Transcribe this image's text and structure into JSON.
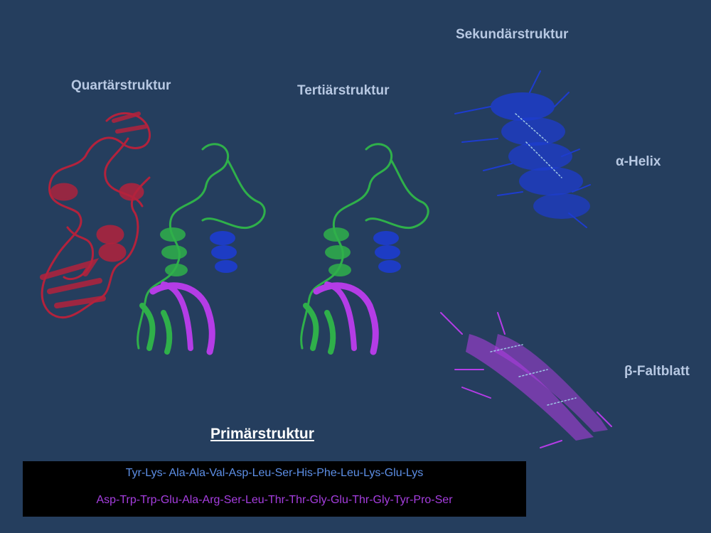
{
  "labels": {
    "quaternary": "Quartärstruktur",
    "tertiary": "Tertiärstruktur",
    "secondary": "Sekundärstruktur",
    "alpha_helix": "α-Helix",
    "beta_sheet": "β-Faltblatt",
    "primary": "Primärstruktur"
  },
  "sequence": {
    "line1": "Tyr-Lys- Ala-Ala-Val-Asp-Leu-Ser-His-Phe-Leu-Lys-Glu-Lys",
    "line2": "Asp-Trp-Trp-Glu-Ala-Arg-Ser-Leu-Thr-Thr-Gly-Glu-Thr-Gly-Tyr-Pro-Ser"
  },
  "colors": {
    "background": "#253e5e",
    "red_subunit": "#b3223c",
    "green_coil": "#2fb04a",
    "blue_helix": "#1d3ccf",
    "purple_sheet": "#b43ce6",
    "seq_blue": "#5d8fe6",
    "seq_purple": "#a63ee0"
  }
}
